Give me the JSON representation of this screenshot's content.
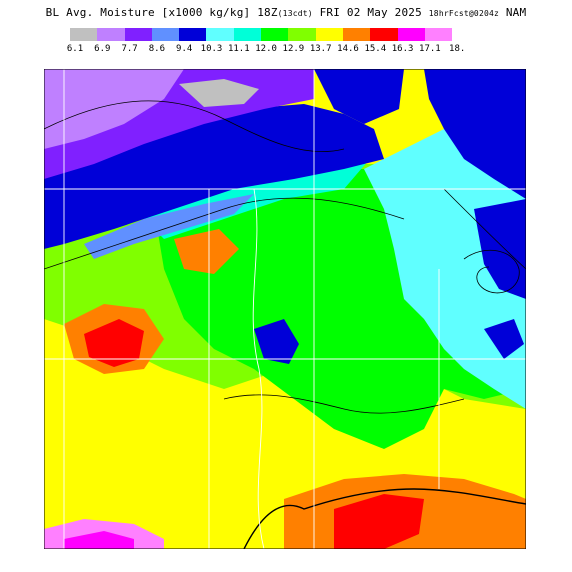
{
  "header": {
    "title_main": "BL Avg. Moisture [x1000 kg/kg]",
    "title_time": "18Z",
    "title_local": "(13cdt)",
    "title_date": "FRI 02 May 2025",
    "title_forecast": "18hrFcst@0204z",
    "title_model": "NAM"
  },
  "legend": {
    "ticks": [
      "6.1",
      "6.9",
      "7.7",
      "8.6",
      "9.4",
      "10.3",
      "11.1",
      "12.0",
      "12.9",
      "13.7",
      "14.6",
      "15.4",
      "16.3",
      "17.1",
      "18."
    ],
    "colors": [
      "#c0c0c0",
      "#bf80ff",
      "#8020ff",
      "#6090ff",
      "#0000d8",
      "#60ffff",
      "#00ffd8",
      "#00ff00",
      "#80ff00",
      "#ffff00",
      "#ff8000",
      "#ff0000",
      "#ff00ff",
      "#ff80ff"
    ]
  },
  "map": {
    "field": "boundary-layer average moisture",
    "palette": {
      "gray": "#c0c0c0",
      "lavender": "#bf80ff",
      "purple": "#8020ff",
      "periwinkle": "#6090ff",
      "blue": "#0000d8",
      "cyan": "#60ffff",
      "aqua": "#00ffd8",
      "green": "#00ff00",
      "lime": "#80ff00",
      "yellow": "#ffff00",
      "orange": "#ff8000",
      "red": "#ff0000",
      "magenta": "#ff00ff",
      "pink": "#ff80ff"
    }
  }
}
